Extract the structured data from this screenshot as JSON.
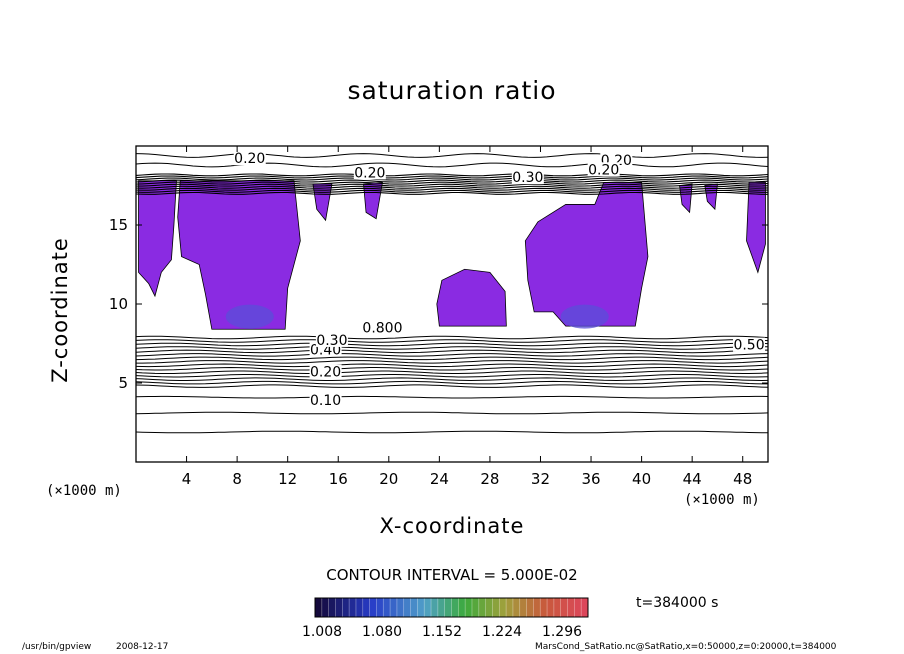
{
  "chart_data": {
    "type": "contour",
    "title": "saturation ratio",
    "xlabel": "X-coordinate",
    "ylabel": "Z-coordinate",
    "x_unit": "(×1000 m)",
    "y_unit": "(×1000 m)",
    "xlim": [
      0,
      50
    ],
    "ylim": [
      0,
      20
    ],
    "x_ticks": [
      4,
      8,
      12,
      16,
      20,
      24,
      28,
      32,
      36,
      40,
      44,
      48
    ],
    "y_ticks": [
      5,
      10,
      15
    ],
    "contour_labels": [
      "0.20",
      "0.20",
      "0.20",
      "0.30",
      "0.20",
      "0.40",
      "0.30",
      "0.20",
      "0.10",
      "0.50",
      "0.800"
    ],
    "contour_interval": "CONTOUR INTERVAL = 5.000E-02",
    "colorbar_ticks": [
      "1.008",
      "1.080",
      "1.152",
      "1.224",
      "1.296"
    ],
    "time": "t=384000 s",
    "fill_color": "#8a2be2"
  },
  "footer": {
    "left": "/usr/bin/gpview",
    "date": "2008-12-17",
    "right": "MarsCond_SatRatio.nc@SatRatio,x=0:50000,z=0:20000,t=384000"
  }
}
